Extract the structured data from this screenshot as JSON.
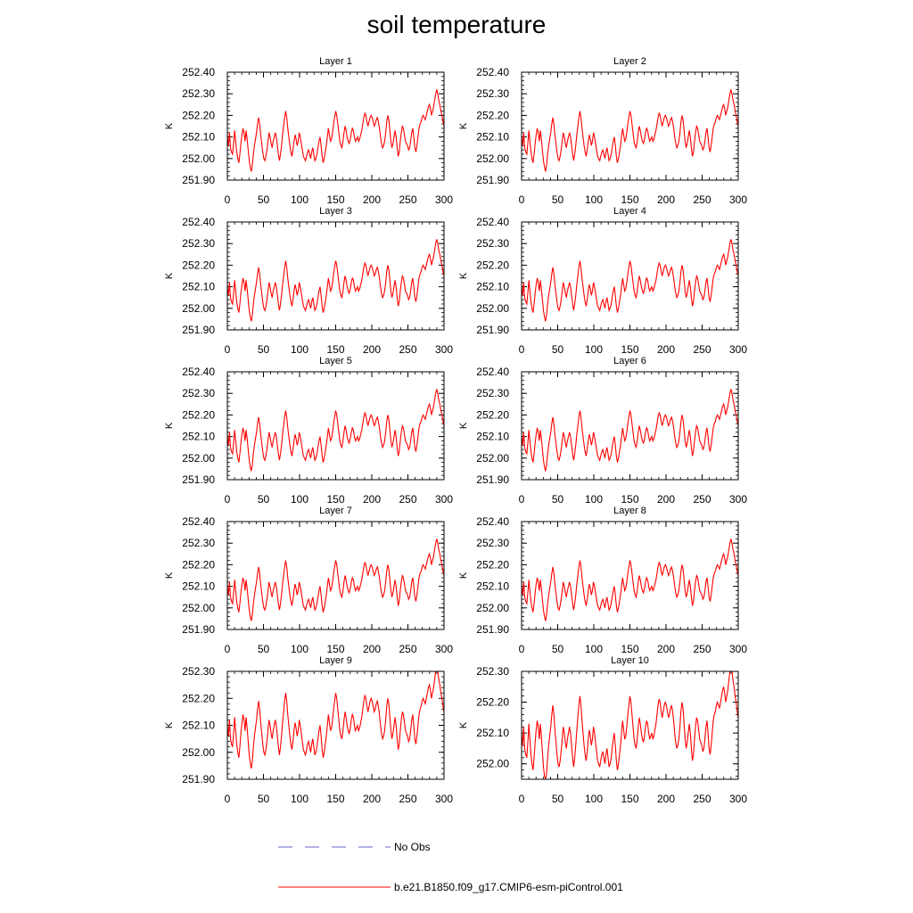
{
  "title": "soil temperature",
  "legend": {
    "items": [
      {
        "label": "No Obs",
        "color": "#6666cc",
        "style": "dashed"
      },
      {
        "label": "b.e21.B1850.f09_g17.CMIP6-esm-piControl.001",
        "color": "#ff0000",
        "style": "solid"
      }
    ]
  },
  "chart_data": [
    {
      "type": "line",
      "title": "Layer 1",
      "ylabel": "K",
      "xlim": [
        0,
        300
      ],
      "ylim": [
        251.9,
        252.4
      ],
      "xticks": [
        0,
        50,
        100,
        150,
        200,
        250,
        300
      ],
      "yticks": [
        251.9,
        252.0,
        252.1,
        252.2,
        252.3,
        252.4
      ],
      "ytick_labels": [
        "251.90",
        "252.00",
        "252.10",
        "252.20",
        "252.30",
        "252.40"
      ],
      "series": [
        {
          "name": "b.e21.B1850.f09_g17.CMIP6-esm-piControl.001",
          "color": "#ff0000"
        }
      ]
    },
    {
      "type": "line",
      "title": "Layer 2",
      "ylabel": "K",
      "xlim": [
        0,
        300
      ],
      "ylim": [
        251.9,
        252.4
      ],
      "xticks": [
        0,
        50,
        100,
        150,
        200,
        250,
        300
      ],
      "yticks": [
        251.9,
        252.0,
        252.1,
        252.2,
        252.3,
        252.4
      ],
      "ytick_labels": [
        "251.90",
        "252.00",
        "252.10",
        "252.20",
        "252.30",
        "252.40"
      ],
      "series": [
        {
          "name": "b.e21.B1850.f09_g17.CMIP6-esm-piControl.001",
          "color": "#ff0000"
        }
      ]
    },
    {
      "type": "line",
      "title": "Layer 3",
      "ylabel": "K",
      "xlim": [
        0,
        300
      ],
      "ylim": [
        251.9,
        252.4
      ],
      "xticks": [
        0,
        50,
        100,
        150,
        200,
        250,
        300
      ],
      "yticks": [
        251.9,
        252.0,
        252.1,
        252.2,
        252.3,
        252.4
      ],
      "ytick_labels": [
        "251.90",
        "252.00",
        "252.10",
        "252.20",
        "252.30",
        "252.40"
      ],
      "series": [
        {
          "name": "b.e21.B1850.f09_g17.CMIP6-esm-piControl.001",
          "color": "#ff0000"
        }
      ]
    },
    {
      "type": "line",
      "title": "Layer 4",
      "ylabel": "K",
      "xlim": [
        0,
        300
      ],
      "ylim": [
        251.9,
        252.4
      ],
      "xticks": [
        0,
        50,
        100,
        150,
        200,
        250,
        300
      ],
      "yticks": [
        251.9,
        252.0,
        252.1,
        252.2,
        252.3,
        252.4
      ],
      "ytick_labels": [
        "251.90",
        "252.00",
        "252.10",
        "252.20",
        "252.30",
        "252.40"
      ],
      "series": [
        {
          "name": "b.e21.B1850.f09_g17.CMIP6-esm-piControl.001",
          "color": "#ff0000"
        }
      ]
    },
    {
      "type": "line",
      "title": "Layer 5",
      "ylabel": "K",
      "xlim": [
        0,
        300
      ],
      "ylim": [
        251.9,
        252.4
      ],
      "xticks": [
        0,
        50,
        100,
        150,
        200,
        250,
        300
      ],
      "yticks": [
        251.9,
        252.0,
        252.1,
        252.2,
        252.3,
        252.4
      ],
      "ytick_labels": [
        "251.90",
        "252.00",
        "252.10",
        "252.20",
        "252.30",
        "252.40"
      ],
      "series": [
        {
          "name": "b.e21.B1850.f09_g17.CMIP6-esm-piControl.001",
          "color": "#ff0000"
        }
      ]
    },
    {
      "type": "line",
      "title": "Layer 6",
      "ylabel": "K",
      "xlim": [
        0,
        300
      ],
      "ylim": [
        251.9,
        252.4
      ],
      "xticks": [
        0,
        50,
        100,
        150,
        200,
        250,
        300
      ],
      "yticks": [
        251.9,
        252.0,
        252.1,
        252.2,
        252.3,
        252.4
      ],
      "ytick_labels": [
        "251.90",
        "252.00",
        "252.10",
        "252.20",
        "252.30",
        "252.40"
      ],
      "series": [
        {
          "name": "b.e21.B1850.f09_g17.CMIP6-esm-piControl.001",
          "color": "#ff0000"
        }
      ]
    },
    {
      "type": "line",
      "title": "Layer 7",
      "ylabel": "K",
      "xlim": [
        0,
        300
      ],
      "ylim": [
        251.9,
        252.4
      ],
      "xticks": [
        0,
        50,
        100,
        150,
        200,
        250,
        300
      ],
      "yticks": [
        251.9,
        252.0,
        252.1,
        252.2,
        252.3,
        252.4
      ],
      "ytick_labels": [
        "251.90",
        "252.00",
        "252.10",
        "252.20",
        "252.30",
        "252.40"
      ],
      "series": [
        {
          "name": "b.e21.B1850.f09_g17.CMIP6-esm-piControl.001",
          "color": "#ff0000"
        }
      ]
    },
    {
      "type": "line",
      "title": "Layer 8",
      "ylabel": "K",
      "xlim": [
        0,
        300
      ],
      "ylim": [
        251.9,
        252.4
      ],
      "xticks": [
        0,
        50,
        100,
        150,
        200,
        250,
        300
      ],
      "yticks": [
        251.9,
        252.0,
        252.1,
        252.2,
        252.3,
        252.4
      ],
      "ytick_labels": [
        "251.90",
        "252.00",
        "252.10",
        "252.20",
        "252.30",
        "252.40"
      ],
      "series": [
        {
          "name": "b.e21.B1850.f09_g17.CMIP6-esm-piControl.001",
          "color": "#ff0000"
        }
      ]
    },
    {
      "type": "line",
      "title": "Layer 9",
      "ylabel": "K",
      "xlim": [
        0,
        300
      ],
      "ylim": [
        251.9,
        252.3
      ],
      "xticks": [
        0,
        50,
        100,
        150,
        200,
        250,
        300
      ],
      "yticks": [
        251.9,
        252.0,
        252.1,
        252.2,
        252.3
      ],
      "ytick_labels": [
        "251.90",
        "252.00",
        "252.10",
        "252.20",
        "252.30"
      ],
      "series": [
        {
          "name": "b.e21.B1850.f09_g17.CMIP6-esm-piControl.001",
          "color": "#ff0000"
        }
      ]
    },
    {
      "type": "line",
      "title": "Layer 10",
      "ylabel": "K",
      "xlim": [
        0,
        300
      ],
      "ylim": [
        251.95,
        252.3
      ],
      "xticks": [
        0,
        50,
        100,
        150,
        200,
        250,
        300
      ],
      "yticks": [
        252.0,
        252.1,
        252.2,
        252.3
      ],
      "ytick_labels": [
        "252.00",
        "252.10",
        "252.20",
        "252.30"
      ],
      "series": [
        {
          "name": "b.e21.B1850.f09_g17.CMIP6-esm-piControl.001",
          "color": "#ff0000"
        }
      ]
    }
  ],
  "series_values": [
    252.1,
    252.06,
    252.12,
    252.05,
    252.03,
    252.02,
    252.07,
    252.13,
    252.08,
    252.03,
    252.0,
    251.98,
    252.02,
    252.07,
    252.11,
    252.14,
    252.12,
    252.08,
    252.13,
    252.09,
    252.04,
    251.99,
    251.96,
    251.94,
    251.97,
    252.02,
    252.06,
    252.09,
    252.12,
    252.16,
    252.19,
    252.16,
    252.11,
    252.07,
    252.03,
    252.0,
    251.99,
    252.01,
    252.04,
    252.08,
    252.12,
    252.1,
    252.07,
    252.05,
    252.08,
    252.1,
    252.12,
    252.1,
    252.06,
    252.02,
    251.99,
    252.02,
    252.06,
    252.11,
    252.15,
    252.19,
    252.22,
    252.19,
    252.14,
    252.1,
    252.06,
    252.03,
    252.01,
    252.04,
    252.08,
    252.11,
    252.09,
    252.06,
    252.08,
    252.12,
    252.1,
    252.07,
    252.04,
    252.01,
    252.0,
    251.99,
    252.01,
    252.03,
    252.04,
    252.02,
    252.0,
    252.03,
    252.05,
    252.02,
    251.99,
    252.0,
    252.02,
    252.05,
    252.08,
    252.1,
    252.06,
    252.01,
    251.98,
    252.0,
    252.03,
    252.06,
    252.1,
    252.14,
    252.11,
    252.08,
    252.09,
    252.12,
    252.16,
    252.19,
    252.22,
    252.2,
    252.16,
    252.12,
    252.08,
    252.06,
    252.05,
    252.08,
    252.12,
    252.15,
    252.13,
    252.1,
    252.08,
    252.07,
    252.09,
    252.12,
    252.14,
    252.13,
    252.1,
    252.08,
    252.09,
    252.1,
    252.08,
    252.09,
    252.11,
    252.13,
    252.16,
    252.19,
    252.21,
    252.2,
    252.17,
    252.15,
    252.17,
    252.19,
    252.2,
    252.19,
    252.17,
    252.15,
    252.16,
    252.18,
    252.19,
    252.17,
    252.14,
    252.1,
    252.07,
    252.05,
    252.06,
    252.08,
    252.12,
    252.17,
    252.2,
    252.18,
    252.13,
    252.08,
    252.05,
    252.07,
    252.1,
    252.13,
    252.1,
    252.05,
    252.01,
    252.03,
    252.08,
    252.12,
    252.15,
    252.14,
    252.11,
    252.08,
    252.07,
    252.06,
    252.04,
    252.05,
    252.08,
    252.12,
    252.14,
    252.1,
    252.05,
    252.03,
    252.06,
    252.1,
    252.14,
    252.16,
    252.17,
    252.19,
    252.2,
    252.19,
    252.18,
    252.2,
    252.22,
    252.24,
    252.25,
    252.23,
    252.2,
    252.22,
    252.24,
    252.27,
    252.3,
    252.32,
    252.3,
    252.27,
    252.25,
    252.22,
    252.2,
    252.17,
    252.15
  ]
}
